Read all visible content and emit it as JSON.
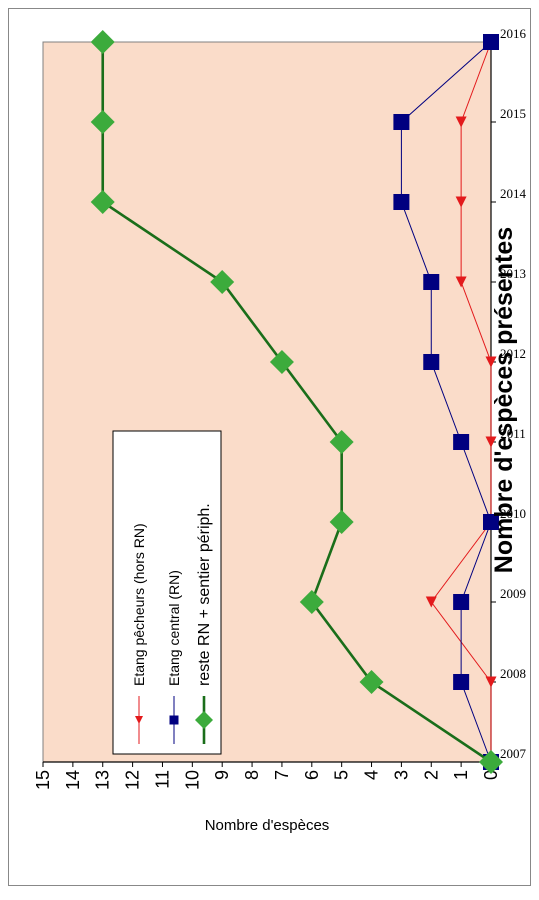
{
  "chart_data": {
    "type": "line",
    "title": "Nombre d'espèces présentes",
    "ylabel": "Nombre d'espèces",
    "xlabel": "",
    "ylim": [
      0,
      15
    ],
    "yticks": [
      0,
      1,
      2,
      3,
      4,
      5,
      6,
      7,
      8,
      9,
      10,
      11,
      12,
      13,
      14,
      15
    ],
    "x": [
      "2007",
      "2008",
      "2009",
      "2010",
      "2011",
      "2012",
      "2013",
      "2014",
      "2015",
      "2016"
    ],
    "legend_position": "top-left (rotated view)",
    "orientation": "rotated 90° counter-clockwise",
    "plot_background": "#fadcc9",
    "series": [
      {
        "name": "Etang pêcheurs (hors RN)",
        "color": "#e31a1c",
        "marker": "triangle",
        "values": [
          0,
          0,
          2,
          0,
          0,
          0,
          1,
          1,
          1,
          0
        ]
      },
      {
        "name": "Etang central (RN)",
        "color": "#000080",
        "marker": "square",
        "values": [
          0,
          1,
          1,
          0,
          1,
          2,
          2,
          3,
          3,
          0
        ]
      },
      {
        "name": "reste RN + sentier périph.",
        "color": "#1a6e1a",
        "marker_color": "#3cab3c",
        "marker": "diamond",
        "values": [
          0,
          4,
          6,
          5,
          5,
          7,
          9,
          13,
          13,
          13
        ]
      }
    ]
  }
}
